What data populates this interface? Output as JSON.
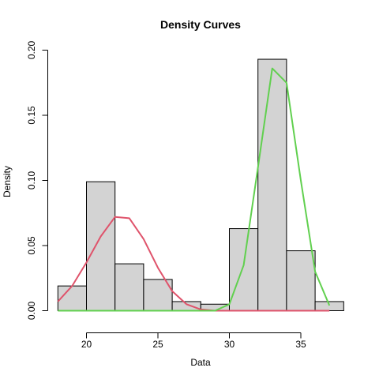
{
  "chart_data": {
    "type": "histogram",
    "title": "Density Curves",
    "xlabel": "Data",
    "ylabel": "Density",
    "xlim": [
      18,
      38
    ],
    "ylim": [
      0,
      0.2
    ],
    "x_ticks": [
      20,
      25,
      30,
      35
    ],
    "y_ticks": [
      0.0,
      0.05,
      0.1,
      0.15,
      0.2
    ],
    "y_tick_labels": [
      "0.00",
      "0.05",
      "0.10",
      "0.15",
      "0.20"
    ],
    "bins": [
      {
        "x0": 18,
        "x1": 20,
        "density": 0.019
      },
      {
        "x0": 20,
        "x1": 22,
        "density": 0.099
      },
      {
        "x0": 22,
        "x1": 24,
        "density": 0.036
      },
      {
        "x0": 24,
        "x1": 26,
        "density": 0.024
      },
      {
        "x0": 26,
        "x1": 28,
        "density": 0.007
      },
      {
        "x0": 28,
        "x1": 30,
        "density": 0.005
      },
      {
        "x0": 30,
        "x1": 32,
        "density": 0.063
      },
      {
        "x0": 32,
        "x1": 34,
        "density": 0.193
      },
      {
        "x0": 34,
        "x1": 36,
        "density": 0.046
      },
      {
        "x0": 36,
        "x1": 38,
        "density": 0.007
      }
    ],
    "bar_fill": "#d3d3d3",
    "series": [
      {
        "color": "#df536b",
        "x": [
          18,
          19,
          20,
          21,
          22,
          23,
          24,
          25,
          26,
          27,
          28,
          29,
          30,
          31,
          32,
          33,
          34,
          35,
          36,
          37
        ],
        "y": [
          0.007,
          0.019,
          0.037,
          0.057,
          0.072,
          0.071,
          0.055,
          0.033,
          0.015,
          0.005,
          0.001,
          0,
          0,
          0,
          0,
          0,
          0,
          0,
          0,
          0
        ]
      },
      {
        "color": "#61d04f",
        "x": [
          18,
          19,
          20,
          21,
          22,
          23,
          24,
          25,
          26,
          27,
          28,
          29,
          30,
          31,
          32,
          33,
          34,
          35,
          36,
          37
        ],
        "y": [
          0,
          0,
          0,
          0,
          0,
          0,
          0,
          0,
          0,
          0,
          0,
          0,
          0.005,
          0.035,
          0.11,
          0.186,
          0.175,
          0.1,
          0.03,
          0.004
        ]
      }
    ]
  }
}
